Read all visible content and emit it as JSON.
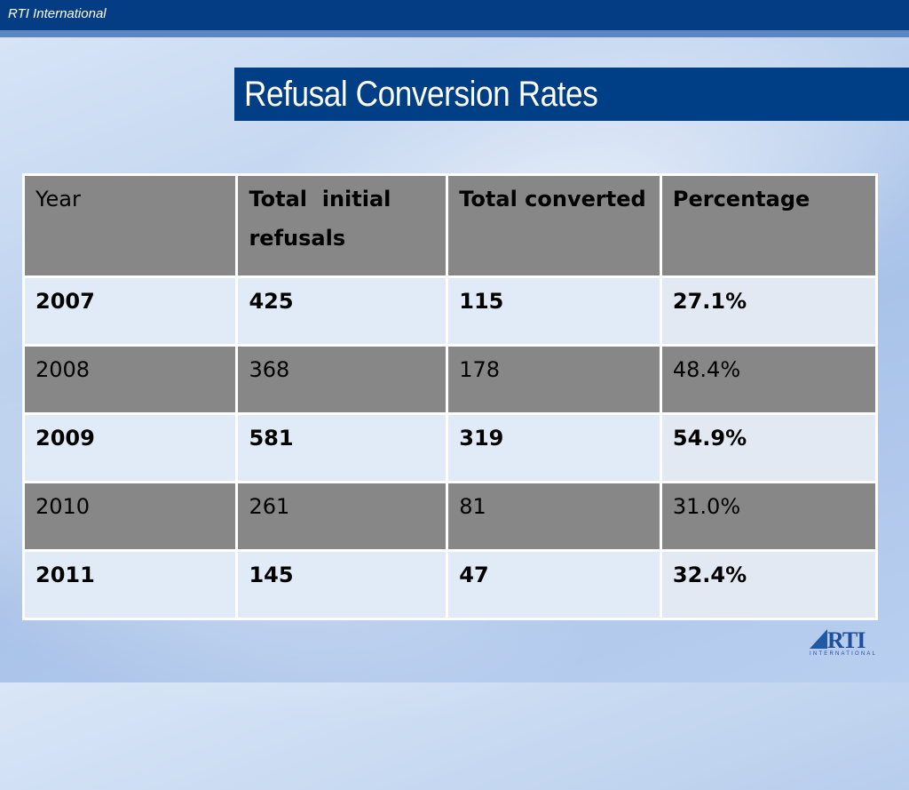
{
  "header": {
    "org_name": "RTI International"
  },
  "slide": {
    "title": "Refusal Conversion Rates"
  },
  "table": {
    "columns": [
      "Year",
      "Total  initial refusals",
      "Total converted",
      "Percentage"
    ],
    "rows": [
      {
        "year": "2007",
        "initial": "425",
        "converted": "115",
        "pct": "27.1%"
      },
      {
        "year": "2008",
        "initial": "368",
        "converted": "178",
        "pct": "48.4%"
      },
      {
        "year": "2009",
        "initial": "581",
        "converted": "319",
        "pct": "54.9%"
      },
      {
        "year": "2010",
        "initial": "261",
        "converted": "81",
        "pct": "31.0%"
      },
      {
        "year": "2011",
        "initial": "145",
        "converted": "47",
        "pct": "32.4%"
      }
    ]
  },
  "logo": {
    "text": "RTI",
    "subtext": "INTERNATIONAL"
  },
  "colors": {
    "brand_blue": "#003e86",
    "header_gray": "#878787"
  }
}
